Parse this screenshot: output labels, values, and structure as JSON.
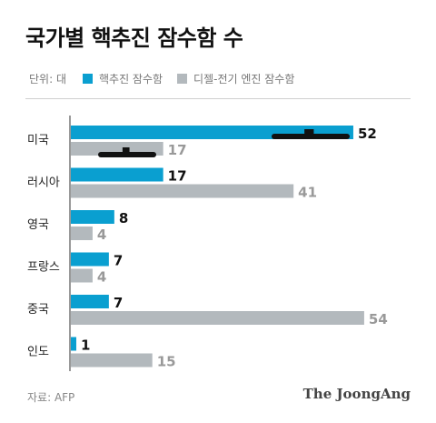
{
  "title": "국가별 핵추진 잠수함 수",
  "legend": {
    "unit": "단위: 대",
    "items": [
      {
        "label": "핵추진 잠수함",
        "color": "#0a9fd0"
      },
      {
        "label": "디젤-전기 엔진 잠수함",
        "color": "#b3b9bd"
      }
    ]
  },
  "chart_data": {
    "type": "bar",
    "orientation": "horizontal",
    "categories": [
      "미국",
      "러시아",
      "영국",
      "프랑스",
      "중국",
      "인도"
    ],
    "series": [
      {
        "name": "핵추진 잠수함",
        "values": [
          52,
          17,
          8,
          7,
          7,
          1
        ]
      },
      {
        "name": "디젤-전기 엔진 잠수함",
        "values": [
          17,
          41,
          4,
          4,
          54,
          15
        ]
      }
    ],
    "title": "국가별 핵추진 잠수함 수",
    "xlabel": "",
    "ylabel": "",
    "unit": "대",
    "grid": false,
    "legend_position": "top-left"
  },
  "footer": {
    "source": "자료: AFP",
    "brand": "The JoongAng"
  }
}
